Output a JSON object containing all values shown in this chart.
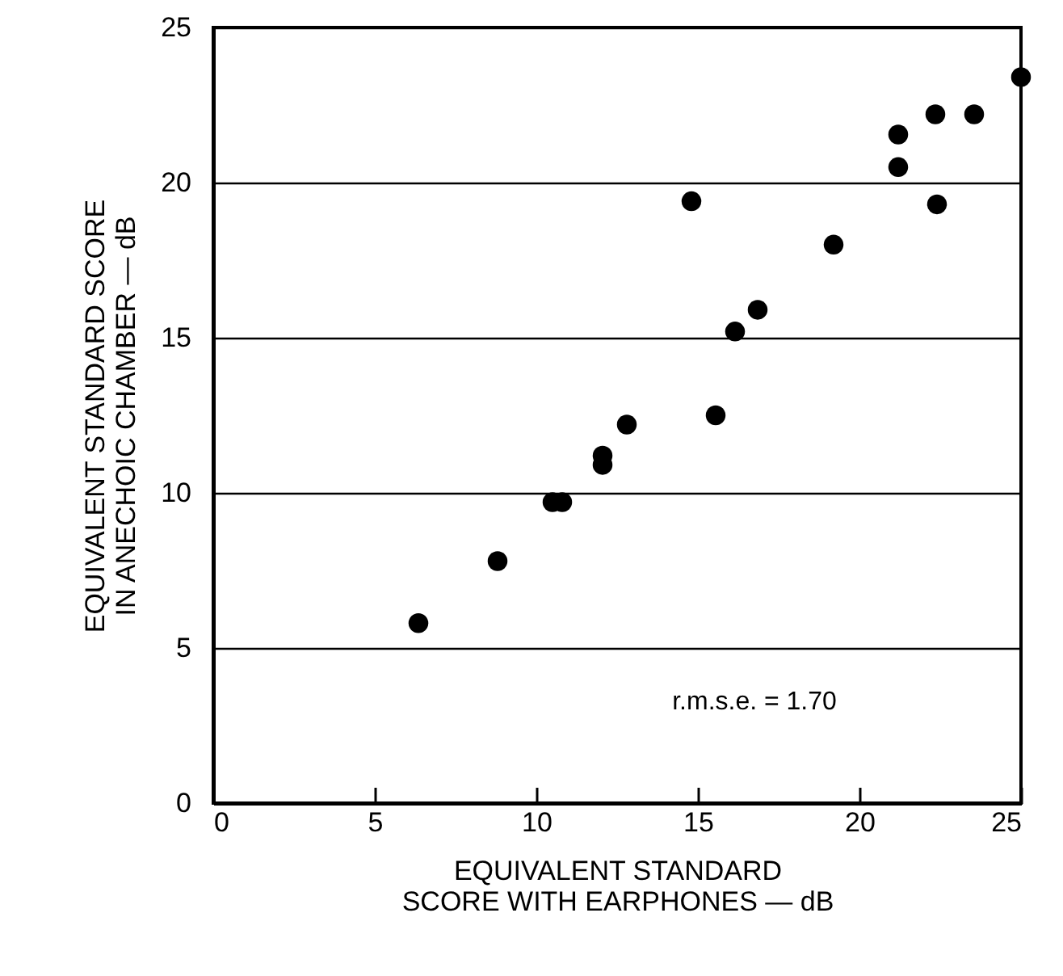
{
  "chart_data": {
    "type": "scatter",
    "xlabel": "EQUIVALENT STANDARD\nSCORE WITH EARPHONES — dB",
    "ylabel": "EQUIVALENT STANDARD SCORE\nIN ANECHOIC CHAMBER — dB",
    "x": [
      6.35,
      8.8,
      10.5,
      10.8,
      12.05,
      12.05,
      12.8,
      15.55,
      14.8,
      16.15,
      16.85,
      19.2,
      21.2,
      21.2,
      22.4,
      22.35,
      23.55,
      25
    ],
    "values": [
      5.8,
      7.8,
      9.7,
      9.7,
      10.9,
      11.2,
      12.2,
      12.5,
      19.4,
      15.2,
      15.9,
      18.0,
      20.5,
      21.55,
      19.3,
      22.2,
      22.2,
      23.4
    ],
    "color": "#000000",
    "marker": "circle",
    "xlim": [
      0,
      25
    ],
    "ylim": [
      0,
      25
    ],
    "xticks": [
      0,
      5,
      10,
      15,
      20,
      25
    ],
    "yticks": [
      0,
      5,
      10,
      15,
      20,
      25
    ],
    "grid": "y",
    "annotations": [
      "r.m.s.e. = 1.70"
    ]
  }
}
